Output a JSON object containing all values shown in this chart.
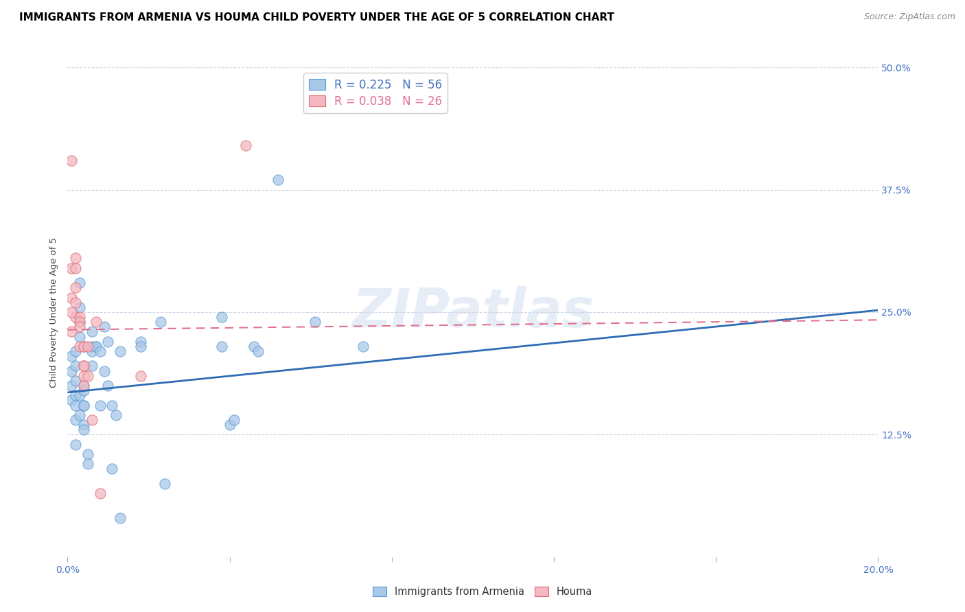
{
  "title": "IMMIGRANTS FROM ARMENIA VS HOUMA CHILD POVERTY UNDER THE AGE OF 5 CORRELATION CHART",
  "source": "Source: ZipAtlas.com",
  "ylabel_label": "Child Poverty Under the Age of 5",
  "x_min": 0.0,
  "x_max": 0.2,
  "y_min": 0.0,
  "y_max": 0.5,
  "x_ticks": [
    0.0,
    0.04,
    0.08,
    0.12,
    0.16,
    0.2
  ],
  "x_tick_labels": [
    "0.0%",
    "",
    "",
    "",
    "",
    "20.0%"
  ],
  "y_ticks": [
    0.0,
    0.125,
    0.25,
    0.375,
    0.5
  ],
  "y_tick_labels": [
    "",
    "12.5%",
    "25.0%",
    "37.5%",
    "50.0%"
  ],
  "legend1_r": "0.225",
  "legend1_n": "56",
  "legend2_r": "0.038",
  "legend2_n": "26",
  "legend1_color": "#a8c8e8",
  "legend1_edge": "#5b9bd5",
  "legend2_color": "#f4b8c1",
  "legend2_edge": "#e06c75",
  "trendline1_color": "#2e6db4",
  "trendline2_color": "#e07090",
  "watermark": "ZIPatlas",
  "blue_scatter": [
    [
      0.001,
      0.205
    ],
    [
      0.001,
      0.19
    ],
    [
      0.001,
      0.175
    ],
    [
      0.001,
      0.16
    ],
    [
      0.002,
      0.21
    ],
    [
      0.002,
      0.195
    ],
    [
      0.002,
      0.18
    ],
    [
      0.002,
      0.165
    ],
    [
      0.002,
      0.155
    ],
    [
      0.002,
      0.14
    ],
    [
      0.003,
      0.28
    ],
    [
      0.003,
      0.255
    ],
    [
      0.003,
      0.24
    ],
    [
      0.003,
      0.225
    ],
    [
      0.004,
      0.215
    ],
    [
      0.004,
      0.175
    ],
    [
      0.004,
      0.155
    ],
    [
      0.004,
      0.135
    ],
    [
      0.005,
      0.105
    ],
    [
      0.005,
      0.095
    ],
    [
      0.006,
      0.23
    ],
    [
      0.006,
      0.215
    ],
    [
      0.006,
      0.21
    ],
    [
      0.006,
      0.195
    ],
    [
      0.007,
      0.215
    ],
    [
      0.007,
      0.215
    ],
    [
      0.008,
      0.21
    ],
    [
      0.008,
      0.155
    ],
    [
      0.009,
      0.235
    ],
    [
      0.009,
      0.19
    ],
    [
      0.01,
      0.22
    ],
    [
      0.01,
      0.175
    ],
    [
      0.011,
      0.155
    ],
    [
      0.011,
      0.09
    ],
    [
      0.012,
      0.145
    ],
    [
      0.013,
      0.21
    ],
    [
      0.013,
      0.04
    ],
    [
      0.018,
      0.22
    ],
    [
      0.018,
      0.215
    ],
    [
      0.023,
      0.24
    ],
    [
      0.024,
      0.075
    ],
    [
      0.038,
      0.245
    ],
    [
      0.038,
      0.215
    ],
    [
      0.04,
      0.135
    ],
    [
      0.041,
      0.14
    ],
    [
      0.046,
      0.215
    ],
    [
      0.047,
      0.21
    ],
    [
      0.052,
      0.385
    ],
    [
      0.061,
      0.24
    ],
    [
      0.073,
      0.215
    ],
    [
      0.002,
      0.115
    ],
    [
      0.003,
      0.165
    ],
    [
      0.003,
      0.145
    ],
    [
      0.004,
      0.17
    ],
    [
      0.004,
      0.155
    ],
    [
      0.004,
      0.13
    ]
  ],
  "pink_scatter": [
    [
      0.001,
      0.405
    ],
    [
      0.001,
      0.295
    ],
    [
      0.001,
      0.265
    ],
    [
      0.002,
      0.305
    ],
    [
      0.002,
      0.295
    ],
    [
      0.002,
      0.275
    ],
    [
      0.002,
      0.26
    ],
    [
      0.002,
      0.245
    ],
    [
      0.003,
      0.245
    ],
    [
      0.003,
      0.24
    ],
    [
      0.003,
      0.235
    ],
    [
      0.003,
      0.215
    ],
    [
      0.004,
      0.215
    ],
    [
      0.004,
      0.195
    ],
    [
      0.004,
      0.195
    ],
    [
      0.004,
      0.185
    ],
    [
      0.004,
      0.175
    ],
    [
      0.005,
      0.215
    ],
    [
      0.005,
      0.185
    ],
    [
      0.006,
      0.14
    ],
    [
      0.007,
      0.24
    ],
    [
      0.008,
      0.065
    ],
    [
      0.018,
      0.185
    ],
    [
      0.044,
      0.42
    ],
    [
      0.001,
      0.25
    ],
    [
      0.001,
      0.23
    ]
  ],
  "trendline1_x": [
    0.0,
    0.2
  ],
  "trendline1_y": [
    0.168,
    0.252
  ],
  "trendline2_x": [
    0.0,
    0.2
  ],
  "trendline2_y": [
    0.232,
    0.242
  ],
  "background_color": "#ffffff",
  "grid_color": "#d0d8e8",
  "axis_color": "#4472c4",
  "title_color": "#000000",
  "title_fontsize": 11,
  "label_fontsize": 9.5,
  "tick_fontsize": 10,
  "source_fontsize": 9
}
